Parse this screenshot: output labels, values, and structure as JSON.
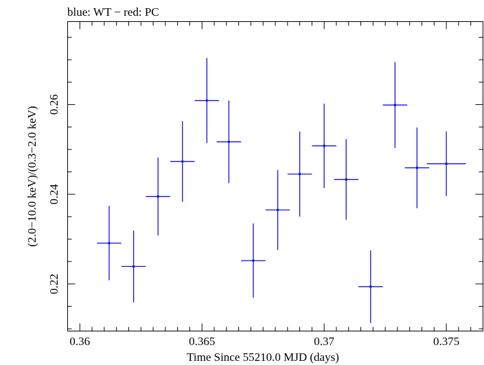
{
  "chart_data": {
    "type": "scatter",
    "title": "blue: WT − red: PC",
    "xlabel": "Time Since 55210.0 MJD (days)",
    "ylabel": "(2.0−10.0 keV)/(0.3−2.0 keV)",
    "xlim": [
      0.3595,
      0.3765
    ],
    "ylim": [
      0.2095,
      0.2785
    ],
    "x_ticks": [
      0.36,
      0.365,
      0.37,
      0.375
    ],
    "x_tick_labels": [
      "0.36",
      "0.365",
      "0.37",
      "0.375"
    ],
    "y_ticks": [
      0.22,
      0.24,
      0.26
    ],
    "y_tick_labels": [
      "0.22",
      "0.24",
      "0.26"
    ],
    "grid": false,
    "series": [
      {
        "color": "#1010dd",
        "points": [
          {
            "x": 0.3612,
            "y": 0.2291,
            "xerr": 0.0005,
            "yerr": 0.0083
          },
          {
            "x": 0.3622,
            "y": 0.2239,
            "xerr": 0.0005,
            "yerr": 0.008
          },
          {
            "x": 0.3632,
            "y": 0.2395,
            "xerr": 0.0005,
            "yerr": 0.0087
          },
          {
            "x": 0.3642,
            "y": 0.2473,
            "xerr": 0.0005,
            "yerr": 0.009
          },
          {
            "x": 0.3652,
            "y": 0.2609,
            "xerr": 0.0005,
            "yerr": 0.0095
          },
          {
            "x": 0.3661,
            "y": 0.2517,
            "xerr": 0.0005,
            "yerr": 0.0092
          },
          {
            "x": 0.3671,
            "y": 0.2252,
            "xerr": 0.0005,
            "yerr": 0.0083
          },
          {
            "x": 0.3681,
            "y": 0.2365,
            "xerr": 0.0005,
            "yerr": 0.0089
          },
          {
            "x": 0.369,
            "y": 0.2445,
            "xerr": 0.0005,
            "yerr": 0.0095
          },
          {
            "x": 0.37,
            "y": 0.2508,
            "xerr": 0.0005,
            "yerr": 0.0094
          },
          {
            "x": 0.3709,
            "y": 0.2433,
            "xerr": 0.0005,
            "yerr": 0.009
          },
          {
            "x": 0.3719,
            "y": 0.2194,
            "xerr": 0.0005,
            "yerr": 0.0081
          },
          {
            "x": 0.3729,
            "y": 0.2599,
            "xerr": 0.0005,
            "yerr": 0.0096
          },
          {
            "x": 0.3738,
            "y": 0.2459,
            "xerr": 0.0005,
            "yerr": 0.009
          },
          {
            "x": 0.375,
            "y": 0.2468,
            "xerr": 0.0008,
            "yerr": 0.0072
          }
        ]
      }
    ]
  }
}
